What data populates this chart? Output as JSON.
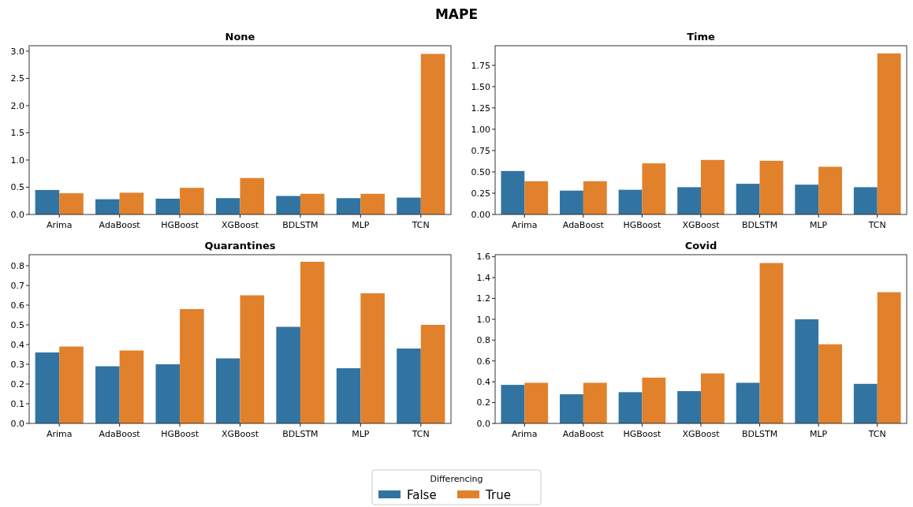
{
  "chart_data": [
    {
      "type": "bar",
      "title": "None",
      "annotations": [
        "MAPE"
      ],
      "categories": [
        "Arima",
        "AdaBoost",
        "HGBoost",
        "XGBoost",
        "BDLSTM",
        "MLP",
        "TCN"
      ],
      "series": [
        {
          "color": "#3274a1",
          "values": [
            0.45,
            0.28,
            0.29,
            0.3,
            0.34,
            0.3,
            0.31
          ]
        },
        {
          "color": "#e1812c",
          "values": [
            0.39,
            0.4,
            0.49,
            0.67,
            0.38,
            0.38,
            2.95
          ]
        }
      ],
      "ylim": [
        0,
        3.1
      ],
      "yticks": [
        {
          "value": 0,
          "label": "0.0"
        },
        {
          "value": 0.5,
          "label": "0.5"
        },
        {
          "value": 1,
          "label": "1.0"
        },
        {
          "value": 1.5,
          "label": "1.5"
        },
        {
          "value": 2,
          "label": "2.0"
        },
        {
          "value": 2.5,
          "label": "2.5"
        },
        {
          "value": 3,
          "label": "3.0"
        }
      ]
    },
    {
      "type": "bar",
      "title": "Time",
      "categories": [
        "Arima",
        "AdaBoost",
        "HGBoost",
        "XGBoost",
        "BDLSTM",
        "MLP",
        "TCN"
      ],
      "series": [
        {
          "color": "#3274a1",
          "values": [
            0.51,
            0.28,
            0.29,
            0.32,
            0.36,
            0.35,
            0.32
          ]
        },
        {
          "color": "#e1812c",
          "values": [
            0.39,
            0.39,
            0.6,
            0.64,
            0.63,
            0.56,
            1.89
          ]
        }
      ],
      "ylim": [
        0,
        1.98
      ],
      "yticks": [
        {
          "value": 0,
          "label": "0.00"
        },
        {
          "value": 0.25,
          "label": "0.25"
        },
        {
          "value": 0.5,
          "label": "0.50"
        },
        {
          "value": 0.75,
          "label": "0.75"
        },
        {
          "value": 1,
          "label": "1.00"
        },
        {
          "value": 1.25,
          "label": "1.25"
        },
        {
          "value": 1.5,
          "label": "1.50"
        },
        {
          "value": 1.75,
          "label": "1.75"
        }
      ]
    },
    {
      "type": "bar",
      "title": "Quarantines",
      "categories": [
        "Arima",
        "AdaBoost",
        "HGBoost",
        "XGBoost",
        "BDLSTM",
        "MLP",
        "TCN"
      ],
      "series": [
        {
          "color": "#3274a1",
          "values": [
            0.36,
            0.29,
            0.3,
            0.33,
            0.49,
            0.28,
            0.38
          ]
        },
        {
          "color": "#e1812c",
          "values": [
            0.39,
            0.37,
            0.58,
            0.65,
            0.82,
            0.66,
            0.5
          ]
        }
      ],
      "ylim": [
        0,
        0.856
      ],
      "yticks": [
        {
          "value": 0,
          "label": "0.0"
        },
        0.1,
        0.2,
        0.3,
        0.4,
        0.5,
        0.6,
        0.7,
        0.8
      ]
    },
    {
      "type": "bar",
      "title": "Covid",
      "legend": "bottom",
      "legend_title": "Differencing",
      "categories": [
        "Arima",
        "AdaBoost",
        "HGBoost",
        "XGBoost",
        "BDLSTM",
        "MLP",
        "TCN"
      ],
      "series": [
        {
          "name": "False",
          "color": "#3274a1",
          "values": [
            0.37,
            0.28,
            0.3,
            0.31,
            0.39,
            1.0,
            0.38
          ]
        },
        {
          "name": "True",
          "color": "#e1812c",
          "values": [
            0.39,
            0.39,
            0.44,
            0.48,
            1.54,
            0.76,
            1.26
          ]
        }
      ],
      "ylim": [
        0,
        1.62
      ],
      "yticks": [
        {
          "value": 0,
          "label": "0.0"
        },
        0.2,
        0.4,
        0.6,
        0.8,
        {
          "value": 1,
          "label": "1.0"
        },
        1.2,
        1.4,
        1.6
      ]
    }
  ]
}
